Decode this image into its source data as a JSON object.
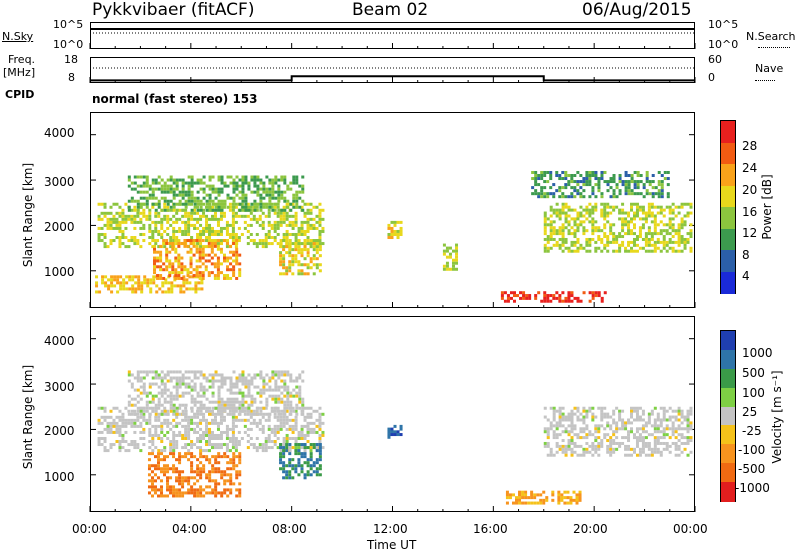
{
  "header": {
    "radar": "Pykkvibaer (fitACF)",
    "beam": "Beam 02",
    "date": "06/Aug/2015"
  },
  "noise_panel": {
    "left_label": "N.Sky",
    "left_ticks": [
      "10^5",
      "10^0"
    ],
    "right_label": "N.Search",
    "right_ticks": [
      "10^5",
      "10^0"
    ]
  },
  "freq_panel": {
    "left_label_1": "Freq.",
    "left_label_2": "[MHz]",
    "left_ticks": [
      "18",
      "8"
    ],
    "right_label": "Nave",
    "right_ticks": [
      "60",
      "0"
    ],
    "cpid_label": "CPID",
    "cpid_value": "normal (fast stereo) 153"
  },
  "power_panel": {
    "ylabel": "Slant Range [km]",
    "yticks": [
      "4000",
      "3000",
      "2000",
      "1000"
    ],
    "colorbar_label": "Power [dB]",
    "colorbar_ticks": [
      "28",
      "24",
      "20",
      "16",
      "12",
      "8",
      "4"
    ],
    "colorbar_colors": [
      "#e8201e",
      "#f25b12",
      "#f9a21a",
      "#e8d81c",
      "#8cc53e",
      "#3c9a4e",
      "#2b5fa8",
      "#1a2ad8"
    ]
  },
  "velocity_panel": {
    "ylabel": "Slant Range [km]",
    "yticks": [
      "4000",
      "3000",
      "2000",
      "1000"
    ],
    "colorbar_label": "Velocity [m s⁻¹]",
    "colorbar_ticks": [
      "1000",
      "500",
      "100",
      "25",
      "-25",
      "-100",
      "-500",
      "-1000"
    ],
    "colorbar_colors": [
      "#1f3fb0",
      "#2e74a8",
      "#3a9a48",
      "#7ed044",
      "#c4c4c4",
      "#f5c21a",
      "#f7931e",
      "#f06a12",
      "#e21e1e"
    ]
  },
  "xaxis": {
    "ticks": [
      "00:00",
      "04:00",
      "08:00",
      "12:00",
      "16:00",
      "20:00",
      "00:00"
    ],
    "label": "Time UT"
  },
  "chart_data": {
    "type": "heatmap",
    "title": "Pykkvibaer (fitACF) Beam 02 06/Aug/2015",
    "x_range_hours": [
      0,
      24
    ],
    "y_range_km": [
      180,
      4500
    ],
    "freq_step": {
      "x_hours": [
        0,
        8,
        8,
        18,
        18,
        24
      ],
      "mhz": [
        9,
        9,
        10.6,
        10.6,
        9,
        9
      ]
    },
    "power_regions_db": [
      {
        "t": [
          0.3,
          9.3
        ],
        "r": [
          1500,
          2500
        ],
        "db": 14
      },
      {
        "t": [
          1.5,
          8.5
        ],
        "r": [
          2300,
          3100
        ],
        "db": 10
      },
      {
        "t": [
          0.2,
          4.5
        ],
        "r": [
          500,
          900
        ],
        "db": 18
      },
      {
        "t": [
          2.5,
          6.0
        ],
        "r": [
          800,
          1700
        ],
        "db": 20
      },
      {
        "t": [
          7.5,
          9.2
        ],
        "r": [
          900,
          1700
        ],
        "db": 16
      },
      {
        "t": [
          11.8,
          12.4
        ],
        "r": [
          1700,
          2100
        ],
        "db": 16
      },
      {
        "t": [
          14.0,
          14.6
        ],
        "r": [
          1000,
          1600
        ],
        "db": 14
      },
      {
        "t": [
          16.3,
          20.5
        ],
        "r": [
          300,
          550
        ],
        "db": 28
      },
      {
        "t": [
          18.0,
          23.9
        ],
        "r": [
          1400,
          2500
        ],
        "db": 14
      },
      {
        "t": [
          17.5,
          23.0
        ],
        "r": [
          2600,
          3200
        ],
        "db": 8
      }
    ],
    "velocity_regions_ms": [
      {
        "t": [
          0.3,
          9.3
        ],
        "r": [
          1500,
          2500
        ],
        "v": 0
      },
      {
        "t": [
          1.5,
          8.5
        ],
        "r": [
          2300,
          3300
        ],
        "v": 0
      },
      {
        "t": [
          2.3,
          6.0
        ],
        "r": [
          500,
          1500
        ],
        "v": -500
      },
      {
        "t": [
          7.5,
          9.2
        ],
        "r": [
          900,
          1700
        ],
        "v": 500
      },
      {
        "t": [
          11.8,
          12.4
        ],
        "r": [
          1800,
          2100
        ],
        "v": 1000
      },
      {
        "t": [
          16.5,
          19.5
        ],
        "r": [
          350,
          650
        ],
        "v": -100
      },
      {
        "t": [
          18.0,
          23.9
        ],
        "r": [
          1400,
          2500
        ],
        "v": 0
      }
    ]
  }
}
